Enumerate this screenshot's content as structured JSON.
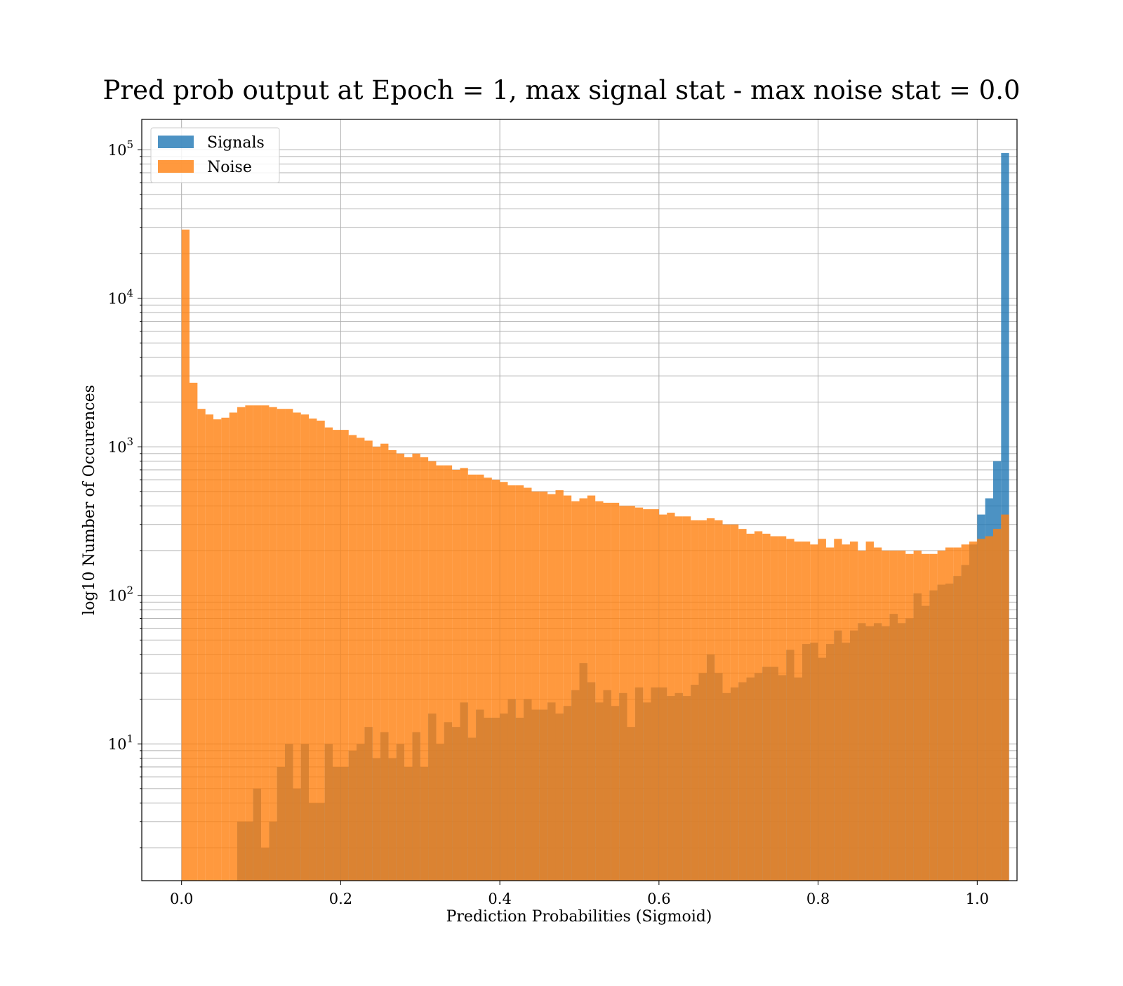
{
  "chart_data": {
    "type": "bar",
    "title": "Pred prob output at Epoch = 1, max signal stat - max noise stat = 0.0",
    "xlabel": "Prediction Probabilities (Sigmoid)",
    "ylabel": "log10 Number of Occurences",
    "xlim": [
      -0.05,
      1.05
    ],
    "ylim": [
      1.2,
      160000
    ],
    "yscale": "log",
    "grid": true,
    "legend_position": "top-left",
    "x_ticks": [
      "0.0",
      "0.2",
      "0.4",
      "0.6",
      "0.8",
      "1.0"
    ],
    "y_ticks": [
      {
        "base": "10",
        "exp": "1",
        "value": 10
      },
      {
        "base": "10",
        "exp": "2",
        "value": 100
      },
      {
        "base": "10",
        "exp": "3",
        "value": 1000
      },
      {
        "base": "10",
        "exp": "4",
        "value": 10000
      },
      {
        "base": "10",
        "exp": "5",
        "value": 100000
      }
    ],
    "bin_start": 0.0,
    "bin_width": 0.01,
    "series": [
      {
        "name": "Signals",
        "color": "#1f77b4",
        "values": [
          0,
          0,
          0,
          0,
          0,
          0,
          0,
          3,
          3,
          5,
          2,
          3,
          7,
          10,
          5,
          10,
          4,
          4,
          10,
          7,
          7,
          9,
          10,
          13,
          8,
          12,
          8,
          10,
          7,
          12,
          7,
          16,
          10,
          14,
          13,
          19,
          11,
          17,
          15,
          15,
          16,
          20,
          15,
          20,
          17,
          17,
          19,
          16,
          18,
          23,
          35,
          26,
          19,
          23,
          18,
          22,
          13,
          24,
          19,
          24,
          24,
          21,
          22,
          21,
          25,
          30,
          40,
          30,
          22,
          24,
          26,
          28,
          30,
          33,
          33,
          29,
          43,
          28,
          47,
          48,
          38,
          47,
          58,
          48,
          58,
          65,
          62,
          65,
          62,
          75,
          65,
          70,
          103,
          85,
          108,
          118,
          120,
          135,
          160,
          220,
          350,
          450,
          800,
          95000
        ],
        "alpha": 0.8
      },
      {
        "name": "Noise",
        "color": "#ff7f0e",
        "values": [
          29000,
          2700,
          1800,
          1650,
          1530,
          1570,
          1700,
          1850,
          1900,
          1900,
          1900,
          1850,
          1800,
          1800,
          1700,
          1650,
          1550,
          1500,
          1350,
          1300,
          1300,
          1200,
          1150,
          1100,
          1000,
          1050,
          950,
          900,
          850,
          900,
          850,
          800,
          750,
          750,
          700,
          720,
          650,
          650,
          620,
          600,
          580,
          550,
          550,
          530,
          500,
          500,
          480,
          510,
          470,
          430,
          450,
          470,
          430,
          420,
          420,
          400,
          400,
          390,
          380,
          380,
          350,
          360,
          340,
          340,
          320,
          320,
          330,
          320,
          300,
          300,
          280,
          260,
          270,
          260,
          250,
          250,
          240,
          230,
          230,
          220,
          240,
          210,
          240,
          220,
          230,
          200,
          230,
          210,
          200,
          200,
          200,
          190,
          200,
          190,
          190,
          200,
          210,
          210,
          220,
          230,
          240,
          250,
          280,
          350
        ],
        "alpha": 0.8
      }
    ]
  }
}
